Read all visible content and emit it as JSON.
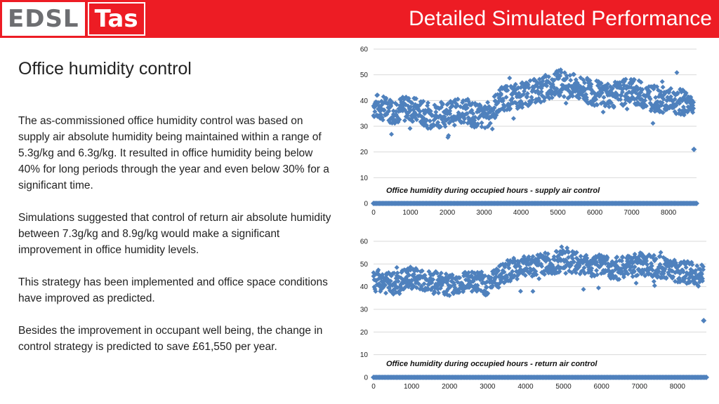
{
  "header": {
    "logo_left": "EDSL",
    "logo_right": "Tas",
    "title": "Detailed Simulated Performance"
  },
  "content": {
    "subtitle": "Office humidity control",
    "paragraphs": [
      "The as-commissioned office humidity control was based on supply air absolute humidity being maintained within a range of 5.3g/kg and 6.3g/kg. It resulted in office humidity being below 40% for long periods through the year and even below 30% for a significant time.",
      "Simulations suggested that control of return air absolute humidity between 7.3g/kg and 8.9g/kg would make a significant improvement in office humidity levels.",
      "This strategy has been implemented and office space conditions have improved as predicted.",
      "Besides the improvement in occupant well being, the change in control strategy is predicted to save £61,550 per year."
    ]
  },
  "colors": {
    "brand_red": "#ed1c24",
    "marker": "#4f81bd",
    "grid": "#d9d9d9"
  },
  "chart_data": [
    {
      "type": "scatter",
      "title": "Office humidity during occupied hours - supply air control",
      "xlim": [
        0,
        8760
      ],
      "ylim": [
        0,
        60
      ],
      "xticks": [
        0,
        1000,
        2000,
        3000,
        4000,
        5000,
        6000,
        7000,
        8000
      ],
      "yticks": [
        0,
        10,
        20,
        30,
        40,
        50,
        60
      ],
      "grid": "horizontal",
      "series": [
        {
          "x": [
            0,
            500,
            1000,
            1500,
            2000,
            2500,
            3000,
            3500,
            4000,
            4500,
            5000,
            5500,
            6000,
            6500,
            7000,
            7500,
            8000,
            8600
          ],
          "y": [
            38,
            36,
            37,
            34,
            35,
            36,
            33,
            41,
            42,
            44,
            47,
            45,
            43,
            42,
            44,
            41,
            40,
            39
          ]
        },
        {
          "x": [
            8690
          ],
          "y": [
            21
          ]
        }
      ]
    },
    {
      "type": "scatter",
      "title": "Office humidity during occupied hours - return air control",
      "xlim": [
        0,
        8760
      ],
      "ylim": [
        0,
        60
      ],
      "xticks": [
        0,
        1000,
        2000,
        3000,
        4000,
        5000,
        6000,
        7000,
        8000
      ],
      "yticks": [
        0,
        10,
        20,
        30,
        40,
        50,
        60
      ],
      "grid": "horizontal",
      "series": [
        {
          "x": [
            0,
            500,
            1000,
            1500,
            2000,
            2500,
            3000,
            3500,
            4000,
            4500,
            5000,
            5500,
            6000,
            6500,
            7000,
            7500,
            8000,
            8600
          ],
          "y": [
            43,
            41,
            44,
            42,
            41,
            43,
            41,
            47,
            49,
            50,
            51,
            50,
            49,
            48,
            50,
            49,
            47,
            45
          ]
        },
        {
          "x": [
            8690
          ],
          "y": [
            25
          ]
        }
      ]
    }
  ]
}
